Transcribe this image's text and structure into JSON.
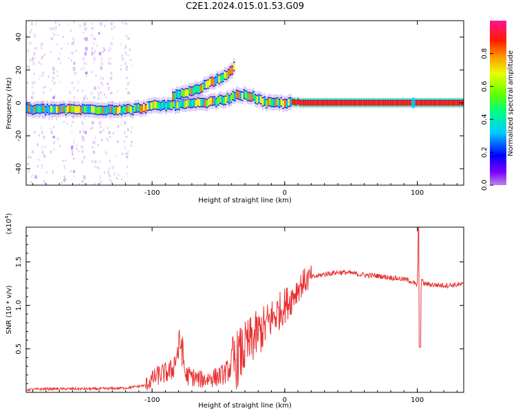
{
  "title": "C2E1.2024.015.01.53.G09",
  "chart_data": [
    {
      "type": "heatmap",
      "xlabel": "Height of straight line (km)",
      "ylabel": "Frequency (Hz)",
      "xlim": [
        -195,
        135
      ],
      "ylim": [
        -50,
        50
      ],
      "xticks": [
        -100,
        0,
        100
      ],
      "yticks": [
        -40,
        -20,
        0,
        20,
        40
      ],
      "colorbar": {
        "label": "Normalized spectral amplitude",
        "range": [
          0,
          1
        ],
        "ticks": [
          0.0,
          0.2,
          0.4,
          0.6,
          0.8
        ]
      },
      "traces": [
        {
          "x": [
            -195,
            -150,
            -115,
            -100,
            -80,
            -60,
            -45,
            -35,
            -25,
            -15,
            -5,
            5,
            30,
            80,
            100,
            135
          ],
          "freq": [
            -4,
            -4,
            -4,
            -2,
            -1,
            0,
            2,
            5,
            4,
            0,
            0,
            0,
            0,
            0,
            0,
            0
          ]
        },
        {
          "x": [
            -85,
            -75,
            -65,
            -55,
            -45,
            -38
          ],
          "freq": [
            4,
            6,
            9,
            13,
            17,
            22
          ]
        }
      ],
      "colormap": [
        "#b78be8",
        "#6a00ff",
        "#0000ff",
        "#00bfff",
        "#00ff80",
        "#80ff00",
        "#ffff00",
        "#ff8000",
        "#ff0000",
        "#ff1493"
      ]
    },
    {
      "type": "line",
      "xlabel": "Height of straight line (km)",
      "ylabel": "SNR (10 * v/v)",
      "scale_label": "(x10",
      "scale_exp": "4",
      "xlim": [
        -195,
        135
      ],
      "ylim": [
        0,
        1.9
      ],
      "xticks": [
        -100,
        0,
        100
      ],
      "yticks": [
        0.5,
        1.0,
        1.5
      ],
      "series": [
        {
          "color": "#e83030",
          "x": [
            -195,
            -180,
            -160,
            -140,
            -120,
            -105,
            -100,
            -95,
            -90,
            -85,
            -80,
            -78,
            -75,
            -70,
            -65,
            -60,
            -55,
            -50,
            -45,
            -40,
            -35,
            -30,
            -25,
            -20,
            -15,
            -10,
            -5,
            0,
            5,
            10,
            15,
            20,
            30,
            40,
            45,
            50,
            60,
            70,
            80,
            90,
            95,
            98,
            100,
            101,
            102,
            103,
            105,
            110,
            120,
            135
          ],
          "y": [
            0.03,
            0.04,
            0.04,
            0.04,
            0.05,
            0.08,
            0.15,
            0.2,
            0.22,
            0.25,
            0.5,
            0.58,
            0.2,
            0.18,
            0.15,
            0.15,
            0.17,
            0.18,
            0.22,
            0.3,
            0.4,
            0.5,
            0.6,
            0.68,
            0.75,
            0.85,
            0.92,
            1.0,
            1.08,
            1.2,
            1.28,
            1.32,
            1.36,
            1.38,
            1.38,
            1.37,
            1.35,
            1.34,
            1.32,
            1.3,
            1.28,
            1.25,
            1.22,
            1.9,
            0.5,
            1.3,
            1.25,
            1.24,
            1.23,
            1.24
          ]
        }
      ]
    }
  ]
}
